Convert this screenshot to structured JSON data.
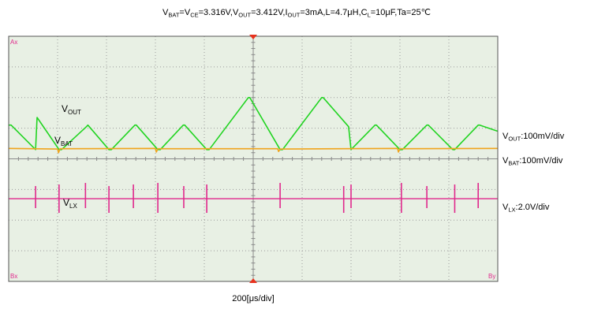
{
  "chart_data": {
    "type": "line",
    "title": {
      "a": "V",
      "a_sub": "BAT",
      "b": "=V",
      "b_sub": "CE",
      "c": "=3.316V,V",
      "c_sub": "OUT",
      "d": "=3.412V,I",
      "d_sub": "OUT",
      "e": "=3mA,L=4.7μH,C",
      "e_sub": "L",
      "f": "=10μF,Ta=25℃"
    },
    "xlabel": "200[μs/div]",
    "grid": true,
    "x_divisions": 10,
    "y_divisions": 8,
    "x_unit": "div",
    "y_unit": "div",
    "xlim": [
      0,
      10
    ],
    "ylim": [
      -4,
      4
    ],
    "corner_marks": {
      "top_left": "Ax",
      "bottom_left": "Bx",
      "bottom_right": "By"
    },
    "colors": {
      "background": "#e8f0e4",
      "grid": "#9a9a9a",
      "frame": "#555555",
      "vout": "#22d422",
      "vbat": "#f0a41c",
      "vlx": "#e0288c",
      "marker": "#e8321e"
    },
    "series": [
      {
        "key": "vout",
        "name": {
          "main": "V",
          "sub": "OUT"
        },
        "scale": {
          "main": "V",
          "sub": "OUT",
          "rest": ":100mV/div"
        },
        "color": "#22d422",
        "x": [
          0.0,
          0.05,
          0.55,
          0.58,
          1.03,
          1.08,
          1.59,
          1.62,
          2.05,
          2.1,
          2.58,
          2.61,
          3.05,
          3.1,
          3.57,
          3.6,
          4.05,
          4.1,
          4.9,
          4.93,
          5.55,
          5.6,
          6.4,
          6.43,
          6.95,
          7.0,
          7.49,
          7.52,
          8.0,
          8.05,
          8.55,
          8.58,
          9.08,
          9.12,
          9.6,
          9.63,
          10.0
        ],
        "y": [
          1.1,
          1.1,
          0.3,
          1.35,
          0.3,
          0.3,
          1.05,
          1.1,
          0.3,
          0.3,
          1.1,
          1.1,
          0.3,
          0.3,
          1.1,
          1.1,
          0.3,
          0.3,
          2.0,
          2.0,
          0.3,
          0.3,
          2.0,
          2.0,
          1.05,
          0.3,
          1.1,
          1.1,
          0.3,
          0.3,
          1.1,
          1.1,
          0.3,
          0.3,
          1.1,
          1.1,
          0.9
        ]
      },
      {
        "key": "vbat",
        "name": {
          "main": "V",
          "sub": "BAT"
        },
        "scale": {
          "main": "V",
          "sub": "BAT",
          "rest": ":100mV/div"
        },
        "color": "#f0a41c",
        "x": [
          0.0,
          1.0,
          1.02,
          1.05,
          3.0,
          3.02,
          3.05,
          5.5,
          5.52,
          5.55,
          7.95,
          7.97,
          8.0,
          10.0
        ],
        "y": [
          0.34,
          0.32,
          0.2,
          0.33,
          0.34,
          0.22,
          0.33,
          0.33,
          0.24,
          0.32,
          0.34,
          0.22,
          0.33,
          0.34
        ]
      },
      {
        "key": "vlx",
        "name": {
          "main": "V",
          "sub": "LX"
        },
        "scale": {
          "main": "V",
          "sub": "LX",
          "rest": ":2.0V/div"
        },
        "color": "#e0288c",
        "baseline": -1.3,
        "spikes": [
          0.55,
          1.03,
          1.57,
          2.05,
          2.55,
          3.05,
          3.58,
          4.05,
          5.55,
          6.85,
          7.0,
          8.03,
          8.55,
          9.12,
          9.6
        ]
      }
    ]
  }
}
